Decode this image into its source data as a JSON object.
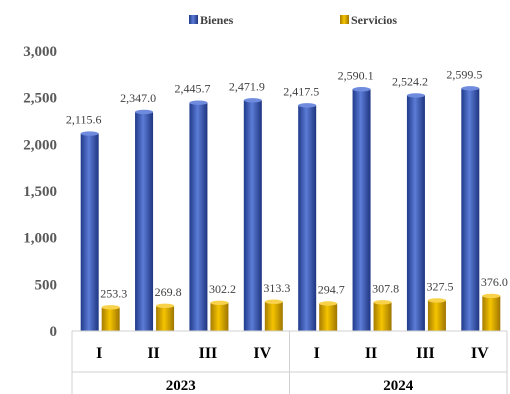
{
  "chart_data": {
    "type": "bar",
    "title": "",
    "xlabel": "",
    "ylabel": "",
    "ylim": [
      0,
      3000
    ],
    "yticks": [
      0,
      500,
      1000,
      1500,
      2000,
      2500,
      3000
    ],
    "ytick_labels": [
      "0",
      "500",
      "1,000",
      "1,500",
      "2,000",
      "2,500",
      "3,000"
    ],
    "grid": false,
    "legend_position": "top-center",
    "groups": [
      {
        "label": "2023",
        "categories": [
          "I",
          "II",
          "III",
          "IV"
        ]
      },
      {
        "label": "2024",
        "categories": [
          "I",
          "II",
          "III",
          "IV"
        ]
      }
    ],
    "series": [
      {
        "name": "Bienes",
        "color": "#3A57A8",
        "values": [
          2115.6,
          2347.0,
          2445.7,
          2471.9,
          2417.5,
          2590.1,
          2524.2,
          2599.5
        ],
        "labels": [
          "2,115.6",
          "2,347.0",
          "2,445.7",
          "2,471.9",
          "2,417.5",
          "2,590.1",
          "2,524.2",
          "2,599.5"
        ]
      },
      {
        "name": "Servicios",
        "color": "#D9A900",
        "values": [
          253.3,
          269.8,
          302.2,
          313.3,
          294.7,
          307.8,
          327.5,
          376.0
        ],
        "labels": [
          "253.3",
          "269.8",
          "302.2",
          "313.3",
          "294.7",
          "307.8",
          "327.5",
          "376.0"
        ]
      }
    ]
  }
}
